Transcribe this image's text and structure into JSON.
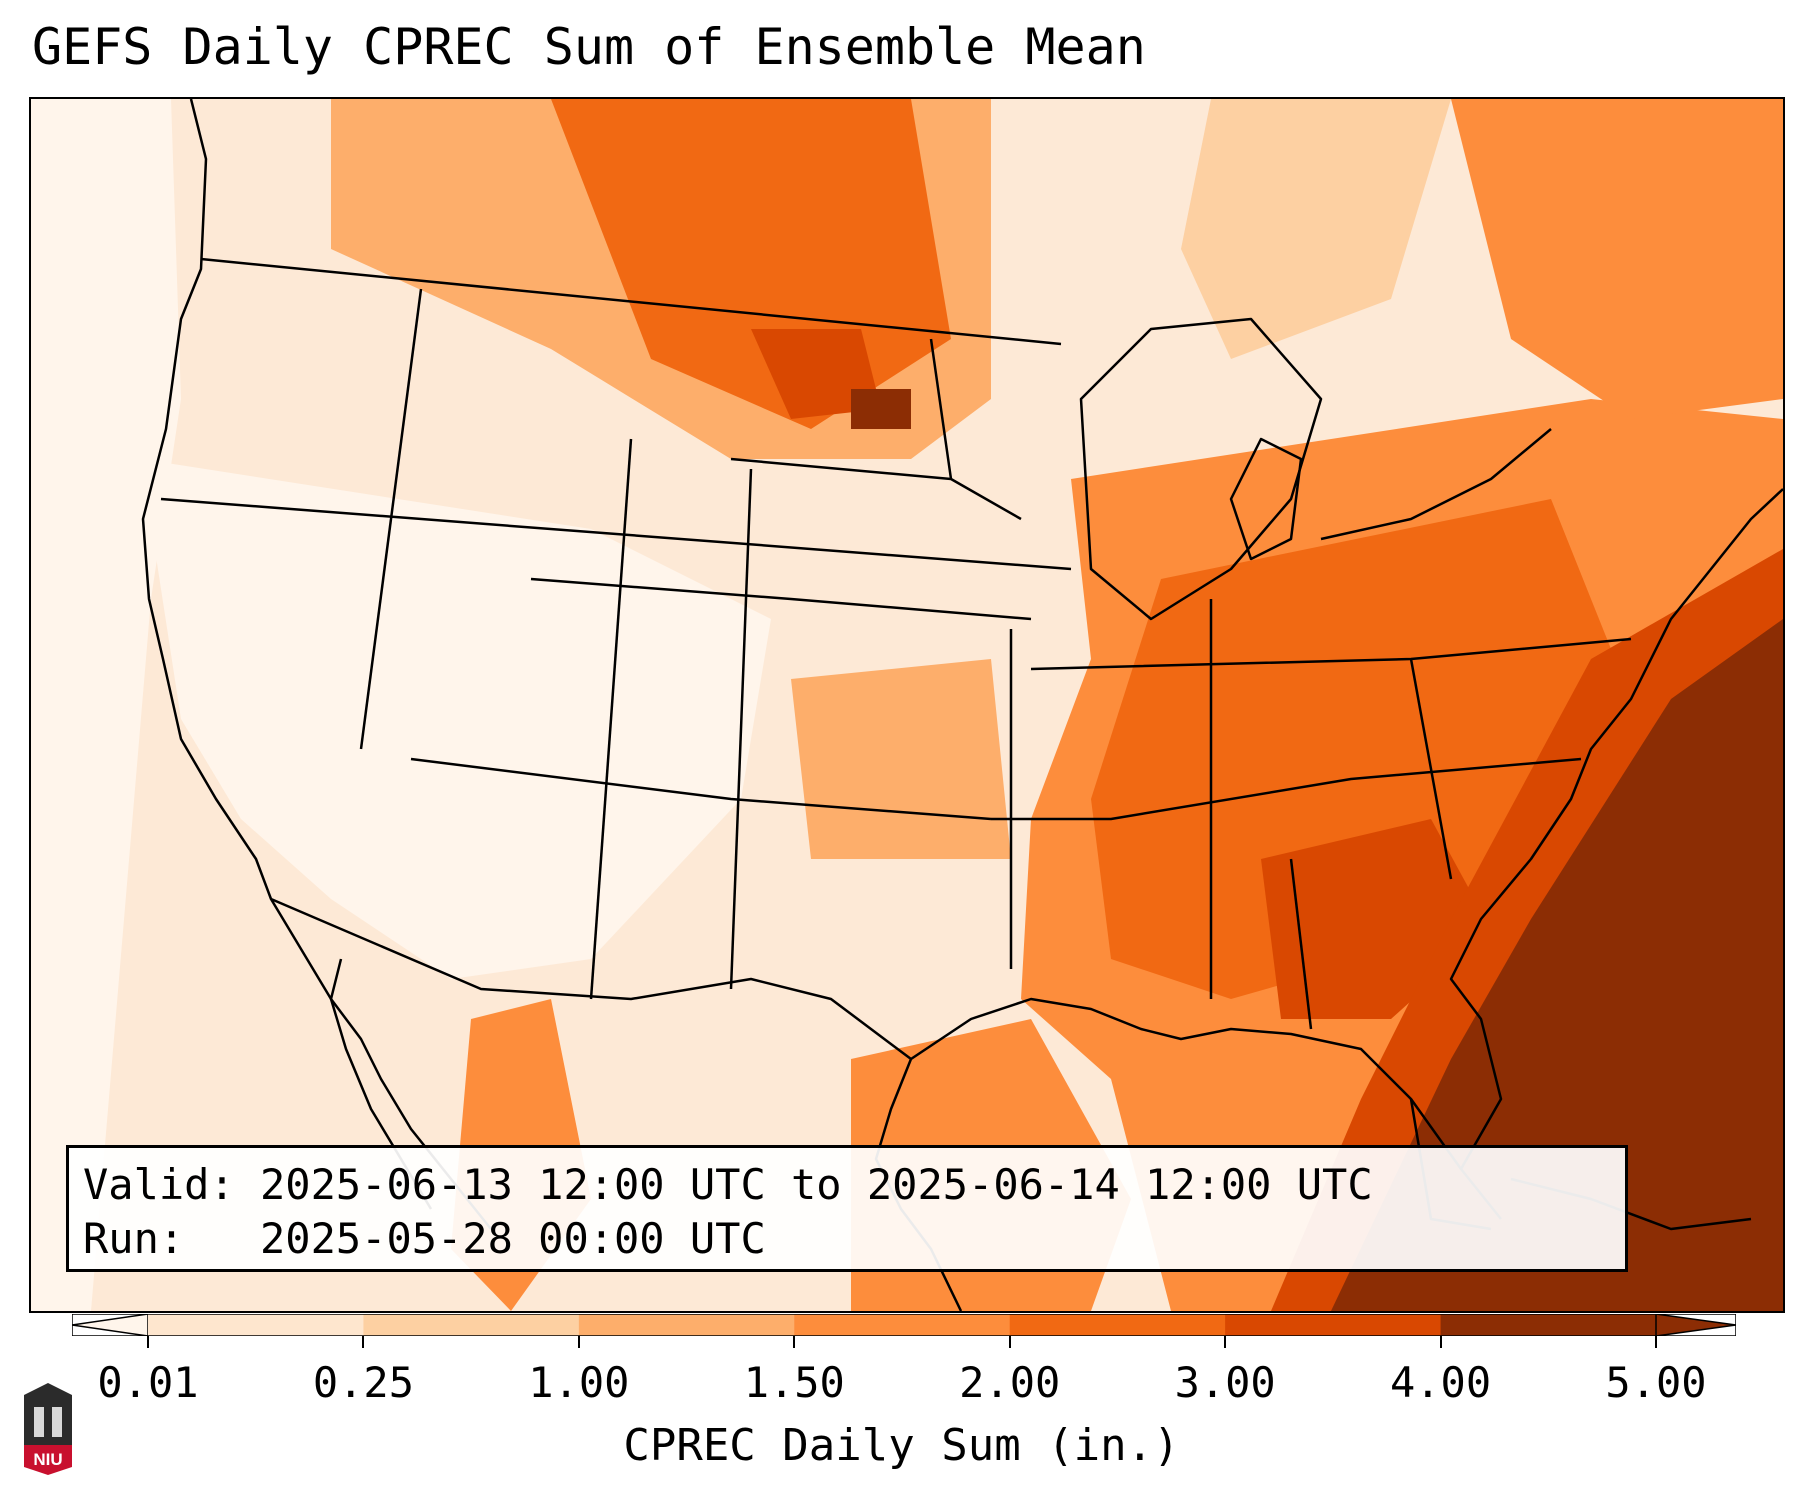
{
  "title": "GEFS Daily CPREC Sum of Ensemble Mean",
  "info": {
    "valid_label": "Valid:",
    "valid_text": "2025-06-13 12:00 UTC to 2025-06-14 12:00 UTC",
    "run_label": "Run:",
    "run_text": "2025-05-28 00:00 UTC"
  },
  "colorbar": {
    "label": "CPREC Daily Sum (in.)",
    "ticks": [
      "0.01",
      "0.25",
      "1.00",
      "1.50",
      "2.00",
      "3.00",
      "4.00",
      "5.00"
    ],
    "colors": [
      "#fff5eb",
      "#fee6ce",
      "#fdd0a2",
      "#fdae6b",
      "#fd8d3c",
      "#f16913",
      "#d94801",
      "#8c2d04"
    ],
    "extend": "both"
  },
  "logo": {
    "text": "NIU",
    "color": "#c8102e"
  },
  "map": {
    "projection": "lambert-conformal",
    "region": "CONUS",
    "background_color": "#fde9d6"
  }
}
